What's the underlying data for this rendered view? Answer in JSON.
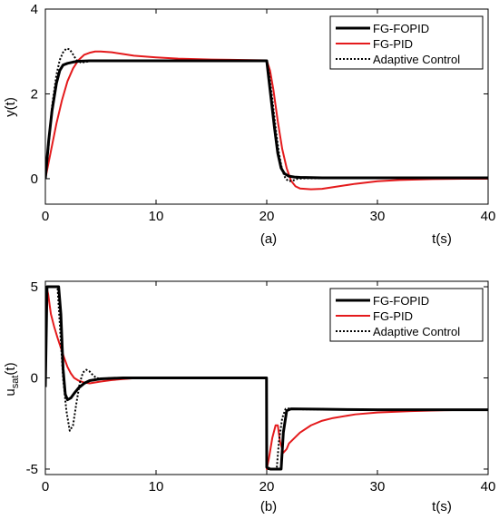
{
  "chart_data": [
    {
      "type": "line",
      "panel_label": "(a)",
      "xlabel": "t(s)",
      "ylabel": "y(t)",
      "xlim": [
        0,
        40
      ],
      "ylim": [
        -0.6,
        4
      ],
      "xticks": [
        0,
        10,
        20,
        30,
        40
      ],
      "yticks": [
        0,
        2,
        4
      ],
      "grid": false,
      "legend_position": "top-right",
      "series": [
        {
          "name": "FG-FOPID",
          "color": "#000000",
          "style": "solid-thick",
          "x": [
            0,
            0.3,
            0.6,
            1.0,
            1.3,
            1.6,
            2.0,
            2.5,
            3.0,
            4.0,
            6,
            10,
            15,
            20,
            20.3,
            20.7,
            21.0,
            21.3,
            21.6,
            22.0,
            22.5,
            23,
            25,
            30,
            40
          ],
          "y": [
            0,
            0.9,
            1.6,
            2.25,
            2.55,
            2.68,
            2.72,
            2.75,
            2.77,
            2.78,
            2.78,
            2.78,
            2.78,
            2.78,
            2.1,
            1.2,
            0.6,
            0.25,
            0.12,
            0.06,
            0.04,
            0.03,
            0.02,
            0.02,
            0.02
          ]
        },
        {
          "name": "FG-PID",
          "color": "#e41a1c",
          "style": "solid",
          "x": [
            0,
            0.5,
            1.0,
            1.5,
            2.0,
            2.5,
            3.0,
            3.5,
            4.0,
            4.5,
            5,
            6,
            7,
            8,
            10,
            12,
            15,
            18,
            20,
            20.3,
            20.6,
            21.0,
            21.4,
            21.8,
            22.2,
            22.6,
            23,
            24,
            25,
            26,
            28,
            30,
            32,
            35,
            38,
            40
          ],
          "y": [
            0,
            0.65,
            1.3,
            1.85,
            2.3,
            2.6,
            2.8,
            2.92,
            2.97,
            3.0,
            3.0,
            2.98,
            2.94,
            2.9,
            2.86,
            2.83,
            2.81,
            2.8,
            2.79,
            2.55,
            2.1,
            1.35,
            0.7,
            0.25,
            -0.05,
            -0.18,
            -0.23,
            -0.25,
            -0.24,
            -0.2,
            -0.12,
            -0.06,
            -0.03,
            -0.01,
            0.0,
            0.0
          ]
        },
        {
          "name": "Adaptive Control",
          "color": "#000000",
          "style": "dotted",
          "x": [
            0,
            0.3,
            0.6,
            1.0,
            1.3,
            1.6,
            1.9,
            2.2,
            2.5,
            2.8,
            3.2,
            3.6,
            4.0,
            5,
            10,
            15,
            20,
            20.2,
            20.5,
            20.8,
            21.1,
            21.4,
            21.7,
            22.0,
            22.4,
            22.8,
            23.5,
            25,
            30,
            40
          ],
          "y": [
            0,
            0.8,
            1.7,
            2.45,
            2.8,
            2.98,
            3.07,
            3.05,
            2.93,
            2.8,
            2.74,
            2.75,
            2.77,
            2.78,
            2.78,
            2.78,
            2.78,
            2.5,
            1.9,
            1.2,
            0.6,
            0.2,
            0.0,
            -0.06,
            -0.04,
            0.0,
            0.01,
            0.01,
            0.01,
            0.01
          ]
        }
      ]
    },
    {
      "type": "line",
      "panel_label": "(b)",
      "xlabel": "t(s)",
      "ylabel_main": "u",
      "ylabel_sub": "sat",
      "ylabel_tail": "(t)",
      "xlim": [
        0,
        40
      ],
      "ylim": [
        -5.3,
        5.3
      ],
      "xticks": [
        0,
        10,
        20,
        30,
        40
      ],
      "yticks": [
        -5,
        0,
        5
      ],
      "grid": false,
      "legend_position": "top-right",
      "series": [
        {
          "name": "FG-FOPID",
          "color": "#000000",
          "style": "solid-thick",
          "x": [
            0,
            0.15,
            0.3,
            1.2,
            1.4,
            1.6,
            1.8,
            2.0,
            2.3,
            2.6,
            3.0,
            3.5,
            4.0,
            5,
            7,
            10,
            15,
            19.98,
            20.0,
            20.3,
            21.3,
            21.5,
            21.8,
            22.2,
            25,
            30,
            40
          ],
          "y": [
            -0.5,
            5.0,
            5.0,
            5.0,
            3.5,
            0.5,
            -0.9,
            -1.2,
            -1.1,
            -0.85,
            -0.55,
            -0.3,
            -0.15,
            -0.05,
            0.0,
            0.0,
            0.0,
            0.0,
            -4.9,
            -5.0,
            -5.0,
            -3.0,
            -1.8,
            -1.7,
            -1.72,
            -1.75,
            -1.75
          ]
        },
        {
          "name": "FG-PID",
          "color": "#e41a1c",
          "style": "solid",
          "x": [
            0,
            0.1,
            0.25,
            0.5,
            0.8,
            1.1,
            1.4,
            1.7,
            2.0,
            2.3,
            2.6,
            3.0,
            3.5,
            4.0,
            4.5,
            5,
            6,
            7,
            8,
            10,
            15,
            19.98,
            20.0,
            20.2,
            20.5,
            20.8,
            21.0,
            21.2,
            21.5,
            21.8,
            22,
            23,
            24,
            25,
            26,
            28,
            30,
            33,
            36,
            40
          ],
          "y": [
            0,
            5.0,
            4.6,
            3.5,
            2.8,
            2.2,
            1.65,
            1.1,
            0.6,
            0.25,
            0.0,
            -0.15,
            -0.25,
            -0.3,
            -0.25,
            -0.2,
            -0.12,
            -0.06,
            -0.02,
            0.0,
            0.0,
            0.0,
            -5.0,
            -4.4,
            -3.3,
            -2.6,
            -2.6,
            -3.5,
            -4.1,
            -3.9,
            -3.6,
            -3.0,
            -2.6,
            -2.35,
            -2.2,
            -2.0,
            -1.9,
            -1.82,
            -1.77,
            -1.75
          ]
        },
        {
          "name": "Adaptive Control",
          "color": "#000000",
          "style": "dotted",
          "x": [
            0,
            0.15,
            0.3,
            1.1,
            1.3,
            1.6,
            1.9,
            2.2,
            2.5,
            2.8,
            3.1,
            3.4,
            3.7,
            4.0,
            4.3,
            4.6,
            5.0,
            6,
            10,
            15,
            19.98,
            20.0,
            20.3,
            20.9,
            21.1,
            21.4,
            21.7,
            22.0,
            23,
            30,
            40
          ],
          "y": [
            -0.3,
            5.0,
            5.0,
            5.0,
            3.0,
            0.0,
            -1.8,
            -2.9,
            -2.6,
            -1.4,
            -0.3,
            0.3,
            0.45,
            0.35,
            0.15,
            0.0,
            -0.05,
            0.0,
            0.0,
            0.0,
            0.0,
            -5.0,
            -5.0,
            -5.0,
            -3.5,
            -2.2,
            -1.7,
            -1.68,
            -1.72,
            -1.75,
            -1.75
          ]
        }
      ]
    }
  ]
}
